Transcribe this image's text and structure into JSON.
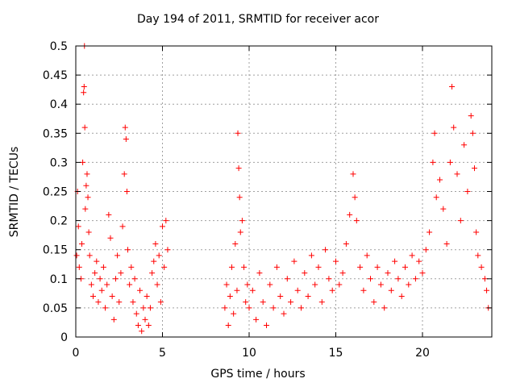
{
  "chart_data": {
    "type": "scatter",
    "title": "Day 194 of 2011, SRMTID for receiver acor",
    "xlabel": "GPS time / hours",
    "ylabel": "SRMTID / TECUs",
    "xlim": [
      0,
      24
    ],
    "ylim": [
      0,
      0.5
    ],
    "xticks": [
      "0",
      "5",
      "10",
      "15",
      "20"
    ],
    "yticks": [
      "0",
      "0.05",
      "0.1",
      "0.15",
      "0.2",
      "0.25",
      "0.3",
      "0.35",
      "0.4",
      "0.45",
      "0.5"
    ],
    "grid": true,
    "marker": "+",
    "color": "#ff0000",
    "series": [
      {
        "name": "SRMTID",
        "points": [
          [
            0.05,
            0.14
          ],
          [
            0.1,
            0.25
          ],
          [
            0.15,
            0.19
          ],
          [
            0.2,
            0.12
          ],
          [
            0.3,
            0.1
          ],
          [
            0.35,
            0.16
          ],
          [
            0.4,
            0.3
          ],
          [
            0.45,
            0.42
          ],
          [
            0.48,
            0.43
          ],
          [
            0.5,
            0.5
          ],
          [
            0.52,
            0.36
          ],
          [
            0.55,
            0.22
          ],
          [
            0.6,
            0.26
          ],
          [
            0.65,
            0.28
          ],
          [
            0.7,
            0.24
          ],
          [
            0.75,
            0.18
          ],
          [
            0.8,
            0.14
          ],
          [
            0.9,
            0.09
          ],
          [
            1.0,
            0.07
          ],
          [
            1.1,
            0.11
          ],
          [
            1.2,
            0.13
          ],
          [
            1.3,
            0.06
          ],
          [
            1.4,
            0.1
          ],
          [
            1.5,
            0.08
          ],
          [
            1.6,
            0.12
          ],
          [
            1.7,
            0.05
          ],
          [
            1.8,
            0.09
          ],
          [
            1.9,
            0.21
          ],
          [
            2.0,
            0.17
          ],
          [
            2.1,
            0.07
          ],
          [
            2.2,
            0.03
          ],
          [
            2.3,
            0.1
          ],
          [
            2.4,
            0.14
          ],
          [
            2.5,
            0.06
          ],
          [
            2.6,
            0.11
          ],
          [
            2.7,
            0.19
          ],
          [
            2.8,
            0.28
          ],
          [
            2.85,
            0.36
          ],
          [
            2.9,
            0.34
          ],
          [
            2.95,
            0.25
          ],
          [
            3.0,
            0.15
          ],
          [
            3.1,
            0.09
          ],
          [
            3.2,
            0.12
          ],
          [
            3.3,
            0.06
          ],
          [
            3.4,
            0.1
          ],
          [
            3.5,
            0.04
          ],
          [
            3.6,
            0.02
          ],
          [
            3.7,
            0.08
          ],
          [
            3.8,
            0.01
          ],
          [
            3.9,
            0.05
          ],
          [
            4.0,
            0.03
          ],
          [
            4.1,
            0.07
          ],
          [
            4.2,
            0.02
          ],
          [
            4.3,
            0.05
          ],
          [
            4.4,
            0.11
          ],
          [
            4.5,
            0.13
          ],
          [
            4.6,
            0.16
          ],
          [
            4.7,
            0.09
          ],
          [
            4.8,
            0.14
          ],
          [
            4.9,
            0.06
          ],
          [
            5.0,
            0.19
          ],
          [
            5.1,
            0.12
          ],
          [
            5.2,
            0.2
          ],
          [
            5.3,
            0.15
          ],
          [
            8.6,
            0.05
          ],
          [
            8.7,
            0.09
          ],
          [
            8.8,
            0.02
          ],
          [
            8.9,
            0.07
          ],
          [
            9.0,
            0.12
          ],
          [
            9.1,
            0.04
          ],
          [
            9.2,
            0.16
          ],
          [
            9.3,
            0.08
          ],
          [
            9.35,
            0.35
          ],
          [
            9.4,
            0.29
          ],
          [
            9.45,
            0.24
          ],
          [
            9.5,
            0.18
          ],
          [
            9.6,
            0.2
          ],
          [
            9.7,
            0.12
          ],
          [
            9.8,
            0.06
          ],
          [
            9.9,
            0.09
          ],
          [
            10.0,
            0.05
          ],
          [
            10.2,
            0.08
          ],
          [
            10.4,
            0.03
          ],
          [
            10.6,
            0.11
          ],
          [
            10.8,
            0.06
          ],
          [
            11.0,
            0.02
          ],
          [
            11.2,
            0.09
          ],
          [
            11.4,
            0.05
          ],
          [
            11.6,
            0.12
          ],
          [
            11.8,
            0.07
          ],
          [
            12.0,
            0.04
          ],
          [
            12.2,
            0.1
          ],
          [
            12.4,
            0.06
          ],
          [
            12.6,
            0.13
          ],
          [
            12.8,
            0.08
          ],
          [
            13.0,
            0.05
          ],
          [
            13.2,
            0.11
          ],
          [
            13.4,
            0.07
          ],
          [
            13.6,
            0.14
          ],
          [
            13.8,
            0.09
          ],
          [
            14.0,
            0.12
          ],
          [
            14.2,
            0.06
          ],
          [
            14.4,
            0.15
          ],
          [
            14.6,
            0.1
          ],
          [
            14.8,
            0.08
          ],
          [
            15.0,
            0.13
          ],
          [
            15.2,
            0.09
          ],
          [
            15.4,
            0.11
          ],
          [
            15.6,
            0.16
          ],
          [
            15.8,
            0.21
          ],
          [
            16.0,
            0.28
          ],
          [
            16.1,
            0.24
          ],
          [
            16.2,
            0.2
          ],
          [
            16.4,
            0.12
          ],
          [
            16.6,
            0.08
          ],
          [
            16.8,
            0.14
          ],
          [
            17.0,
            0.1
          ],
          [
            17.2,
            0.06
          ],
          [
            17.4,
            0.12
          ],
          [
            17.6,
            0.09
          ],
          [
            17.8,
            0.05
          ],
          [
            18.0,
            0.11
          ],
          [
            18.2,
            0.08
          ],
          [
            18.4,
            0.13
          ],
          [
            18.6,
            0.1
          ],
          [
            18.8,
            0.07
          ],
          [
            19.0,
            0.12
          ],
          [
            19.2,
            0.09
          ],
          [
            19.4,
            0.14
          ],
          [
            19.6,
            0.1
          ],
          [
            19.8,
            0.13
          ],
          [
            20.0,
            0.11
          ],
          [
            20.2,
            0.15
          ],
          [
            20.4,
            0.18
          ],
          [
            20.6,
            0.3
          ],
          [
            20.7,
            0.35
          ],
          [
            20.8,
            0.24
          ],
          [
            21.0,
            0.27
          ],
          [
            21.2,
            0.22
          ],
          [
            21.4,
            0.16
          ],
          [
            21.6,
            0.3
          ],
          [
            21.7,
            0.43
          ],
          [
            21.8,
            0.36
          ],
          [
            22.0,
            0.28
          ],
          [
            22.2,
            0.2
          ],
          [
            22.4,
            0.33
          ],
          [
            22.6,
            0.25
          ],
          [
            22.8,
            0.38
          ],
          [
            22.9,
            0.35
          ],
          [
            23.0,
            0.29
          ],
          [
            23.1,
            0.18
          ],
          [
            23.2,
            0.14
          ],
          [
            23.4,
            0.12
          ],
          [
            23.6,
            0.1
          ],
          [
            23.7,
            0.08
          ],
          [
            23.8,
            0.05
          ]
        ]
      }
    ]
  }
}
